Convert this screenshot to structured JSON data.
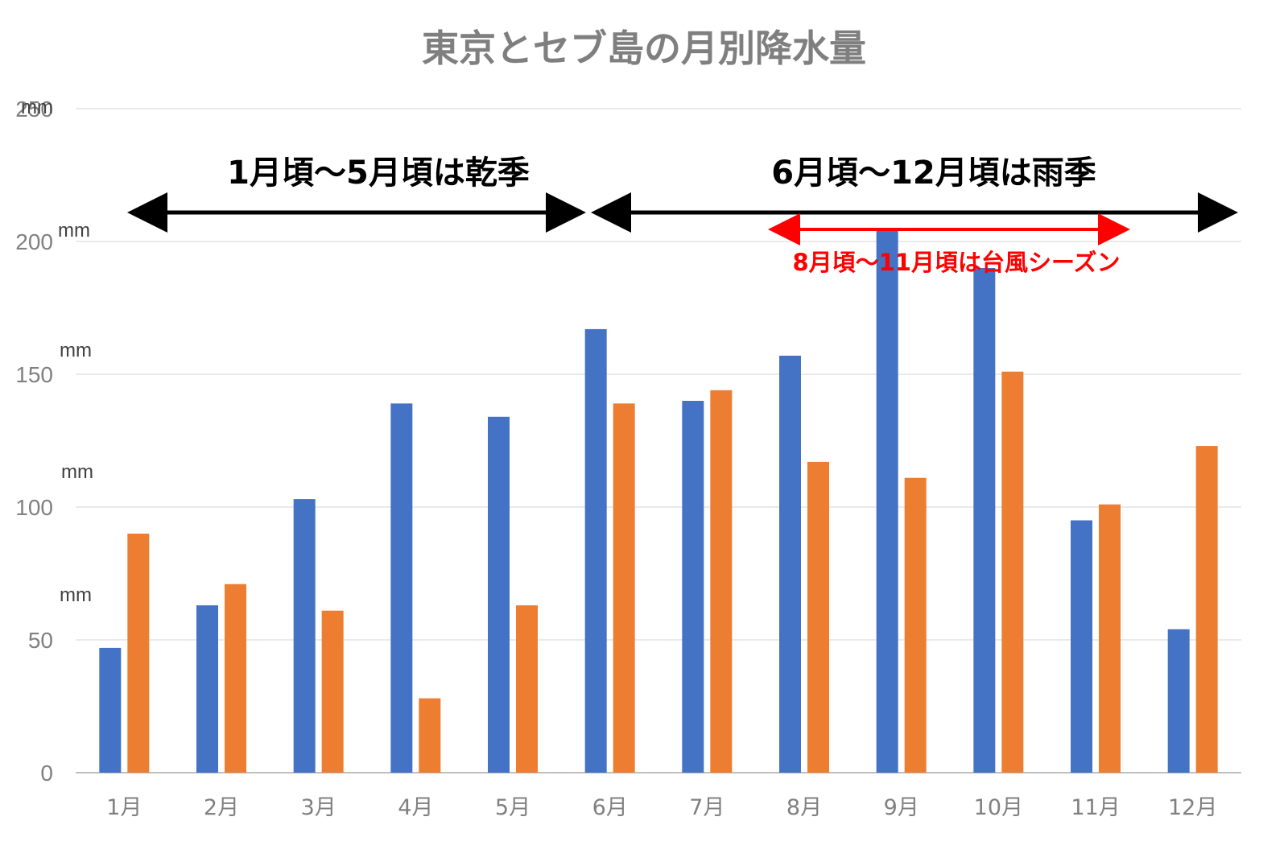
{
  "chart_data": {
    "type": "bar",
    "title": "東京とセブ島の月別降水量",
    "categories": [
      "1月",
      "2月",
      "3月",
      "4月",
      "5月",
      "6月",
      "7月",
      "8月",
      "9月",
      "10月",
      "11月",
      "12月"
    ],
    "series": [
      {
        "color": "#4472c4",
        "values": [
          47,
          63,
          103,
          139,
          134,
          167,
          140,
          157,
          205,
          190,
          95,
          54
        ]
      },
      {
        "color": "#ed7d31",
        "values": [
          90,
          71,
          61,
          28,
          63,
          139,
          144,
          117,
          111,
          151,
          101,
          123
        ]
      }
    ],
    "ylim": [
      0,
      250
    ],
    "yticks": [
      0,
      50,
      100,
      150,
      200,
      250
    ],
    "yunit": "mm",
    "grid": true,
    "legend": "none",
    "annotations": {
      "dry_season": {
        "text": "1月頃～5月頃は乾季",
        "from": "1月",
        "to": "5月",
        "color": "#000000"
      },
      "rainy_season": {
        "text": "6月頃～12月頃は雨季",
        "from": "6月",
        "to": "12月",
        "color": "#000000"
      },
      "typhoon_season": {
        "text": "8月頃～11月頃は台風シーズン",
        "from": "8月",
        "to": "11月",
        "color": "#ff0000"
      }
    }
  }
}
